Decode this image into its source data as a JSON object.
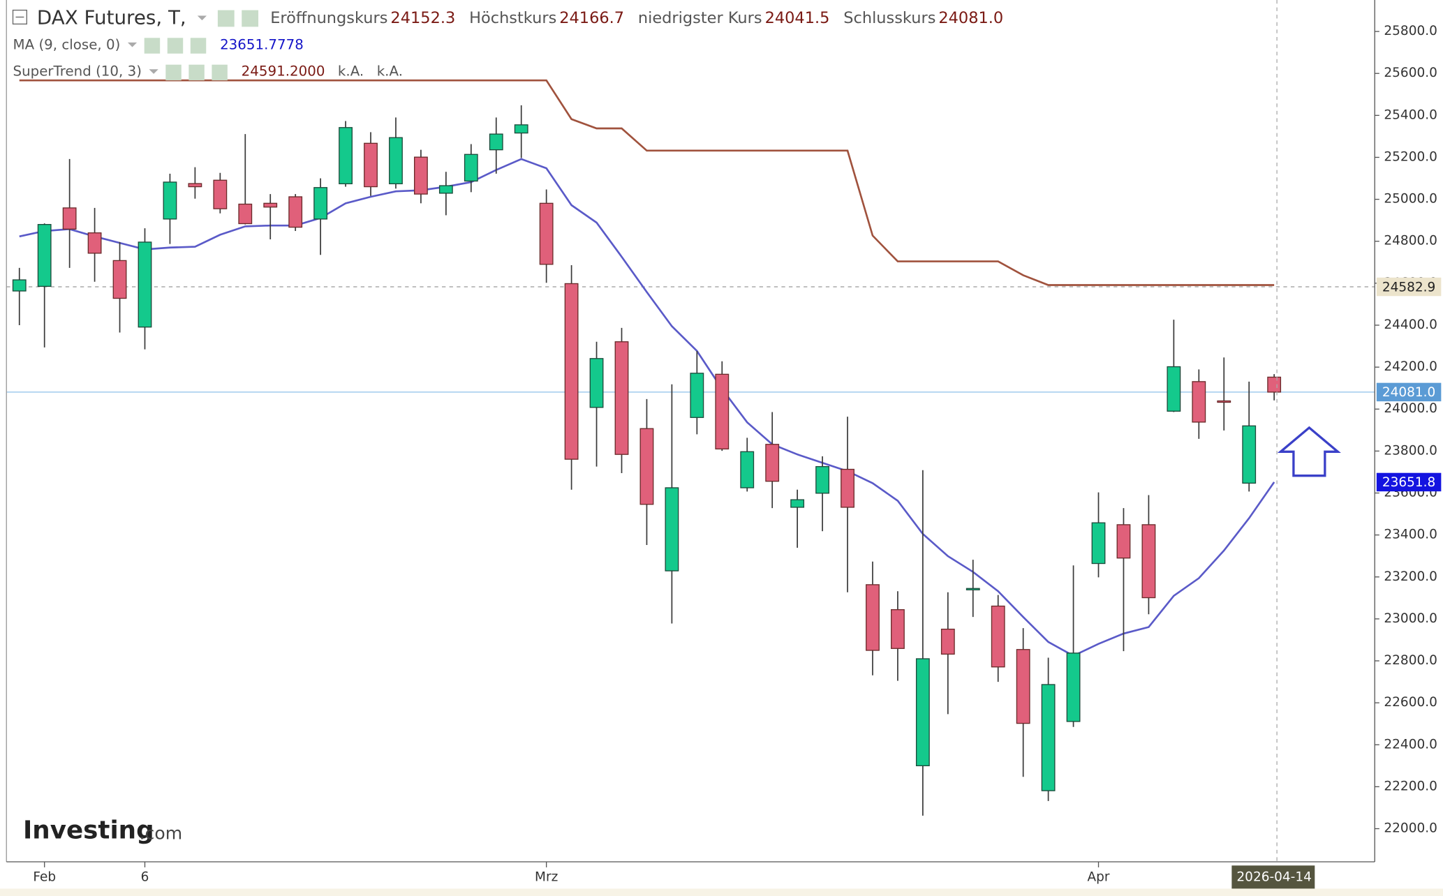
{
  "chart_data": {
    "type": "candlestick",
    "title": "DAX Futures, T,",
    "categories": [
      null,
      "Feb",
      null,
      null,
      null,
      "6",
      null,
      null,
      null,
      null,
      null,
      null,
      null,
      null,
      null,
      null,
      null,
      null,
      null,
      null,
      null,
      "Mrz",
      null,
      null,
      null,
      null,
      null,
      null,
      null,
      null,
      null,
      null,
      null,
      null,
      null,
      null,
      null,
      null,
      null,
      null,
      null,
      null,
      null,
      "Apr",
      null,
      null,
      null,
      null,
      null,
      null,
      "2026-04-14"
    ],
    "open": [
      24563,
      24585,
      24959,
      24840,
      24708,
      24391,
      24906,
      25075,
      25091,
      24977,
      24981,
      25012,
      24906,
      25074,
      25267,
      25074,
      25201,
      25029,
      25087,
      25236,
      25316,
      24981,
      24598,
      24008,
      24321,
      23907,
      23229,
      23960,
      24166,
      23625,
      23832,
      23532,
      23599,
      23713,
      23163,
      23044,
      22300,
      22951,
      23141,
      23061,
      22854,
      22181,
      22511,
      23264,
      23449,
      23449,
      23990,
      24131,
      24039,
      23647,
      24152.3
    ],
    "high": [
      24673,
      24885,
      25192,
      24959,
      24796,
      24862,
      25122,
      25153,
      25126,
      25311,
      25025,
      25025,
      25100,
      25373,
      25320,
      25390,
      25236,
      25131,
      25263,
      25390,
      25448,
      25047,
      24686,
      24321,
      24387,
      24048,
      24118,
      24277,
      24228,
      23863,
      23986,
      23616,
      23775,
      23964,
      23273,
      23132,
      23709,
      23127,
      23282,
      23114,
      22956,
      22815,
      23255,
      23603,
      23528,
      23590,
      24426,
      24189,
      24246,
      24131,
      24166.7
    ],
    "low": [
      24400,
      24294,
      24673,
      24607,
      24365,
      24285,
      24787,
      25003,
      24933,
      24880,
      24809,
      24849,
      24735,
      25060,
      25016,
      25051,
      24981,
      24924,
      25034,
      25122,
      25197,
      24602,
      23616,
      23726,
      23695,
      23352,
      22978,
      23880,
      23801,
      23607,
      23528,
      23339,
      23418,
      23127,
      22731,
      22705,
      22062,
      22546,
      23009,
      22700,
      22247,
      22132,
      22485,
      23198,
      22846,
      23022,
      23986,
      23858,
      23898,
      23607,
      24041.5
    ],
    "close": [
      24616,
      24880,
      24858,
      24743,
      24528,
      24796,
      25082,
      25060,
      24955,
      24884,
      24963,
      24867,
      25056,
      25342,
      25060,
      25294,
      25025,
      25065,
      25214,
      25311,
      25355,
      24690,
      23761,
      24241,
      23784,
      23546,
      23625,
      24171,
      23810,
      23797,
      23656,
      23568,
      23726,
      23532,
      22850,
      22859,
      22810,
      22832,
      23145,
      22771,
      22502,
      22687,
      22837,
      23458,
      23290,
      23101,
      24202,
      23938,
      24035,
      23920,
      24081.0
    ],
    "up_color": "#14c98c",
    "down_color": "#e0607a",
    "ohlc_header": [
      {
        "name": "Eröffnungskurs",
        "label": "24152.3"
      },
      {
        "name": "Höchstkurs",
        "label": "24166.7"
      },
      {
        "name": "niedrigster Kurs",
        "label": "24041.5"
      },
      {
        "name": "Schlusskurs",
        "label": "24081.0"
      }
    ],
    "series": [
      {
        "name": "MA (9, close, 0)",
        "color": "#5a5ac8",
        "header_values": [
          "23651.7778"
        ],
        "values": [
          24823,
          24849,
          24858,
          24823,
          24792,
          24761,
          24770,
          24774,
          24831,
          24871,
          24875,
          24875,
          24911,
          24981,
          25012,
          25038,
          25043,
          25060,
          25082,
          25140,
          25192,
          25148,
          24972,
          24889,
          24726,
          24558,
          24395,
          24277,
          24096,
          23937,
          23832,
          23784,
          23744,
          23704,
          23647,
          23563,
          23405,
          23299,
          23224,
          23132,
          23009,
          22890,
          22824,
          22881,
          22930,
          22961,
          23110,
          23194,
          23326,
          23480,
          23651.8
        ]
      },
      {
        "name": "SuperTrend (10, 3)",
        "color": "#a0523d",
        "header_values": [
          "24591.2000",
          "k.A.",
          "k.A."
        ],
        "values": [
          25567,
          25567,
          25567,
          25567,
          25567,
          25567,
          25567,
          25567,
          25567,
          25567,
          25567,
          25567,
          25567,
          25567,
          25567,
          25567,
          25567,
          25567,
          25567,
          25567,
          25567,
          25567,
          25382,
          25338,
          25338,
          25232,
          25232,
          25232,
          25232,
          25232,
          25232,
          25232,
          25232,
          25232,
          24827,
          24704,
          24704,
          24704,
          24704,
          24704,
          24638,
          24591.2,
          24591.2,
          24591.2,
          24591.2,
          24591.2,
          24591.2,
          24591.2,
          24591.2,
          24591.2,
          24591.2
        ]
      }
    ],
    "ylim": [
      21842,
      25950
    ],
    "yticks": [
      {
        "value": 22000,
        "label": "22000.0"
      },
      {
        "value": 22200,
        "label": "22200.0"
      },
      {
        "value": 22400,
        "label": "22400.0"
      },
      {
        "value": 22600,
        "label": "22600.0"
      },
      {
        "value": 22800,
        "label": "22800.0"
      },
      {
        "value": 23000,
        "label": "23000.0"
      },
      {
        "value": 23200,
        "label": "23200.0"
      },
      {
        "value": 23400,
        "label": "23400.0"
      },
      {
        "value": 23600,
        "label": "23600.0"
      },
      {
        "value": 23800,
        "label": "23800.0"
      },
      {
        "value": 24000,
        "label": "24000.0"
      },
      {
        "value": 24200,
        "label": "24200.0"
      },
      {
        "value": 24400,
        "label": "24400.0"
      },
      {
        "value": 24600,
        "label": "24600.0"
      },
      {
        "value": 24800,
        "label": "24800.0"
      },
      {
        "value": 25000,
        "label": "25000.0"
      },
      {
        "value": 25200,
        "label": "25200.0"
      },
      {
        "value": 25400,
        "label": "25400.0"
      },
      {
        "value": 25600,
        "label": "25600.0"
      },
      {
        "value": 25800,
        "label": "25800.0"
      }
    ],
    "price_markers": [
      {
        "value": 24582.9,
        "label": "24582.9",
        "color": "#ece4cc",
        "text_color": "#222",
        "line": "dashed"
      },
      {
        "value": 24081.0,
        "label": "24081.0",
        "color": "#5b9bd5",
        "text_color": "#fff",
        "line": "solid"
      },
      {
        "value": 23651.8,
        "label": "23651.8",
        "color": "#1414e0",
        "text_color": "#fff",
        "line": "none"
      }
    ],
    "watermark": "Investing",
    "watermark_suffix": ".com"
  }
}
